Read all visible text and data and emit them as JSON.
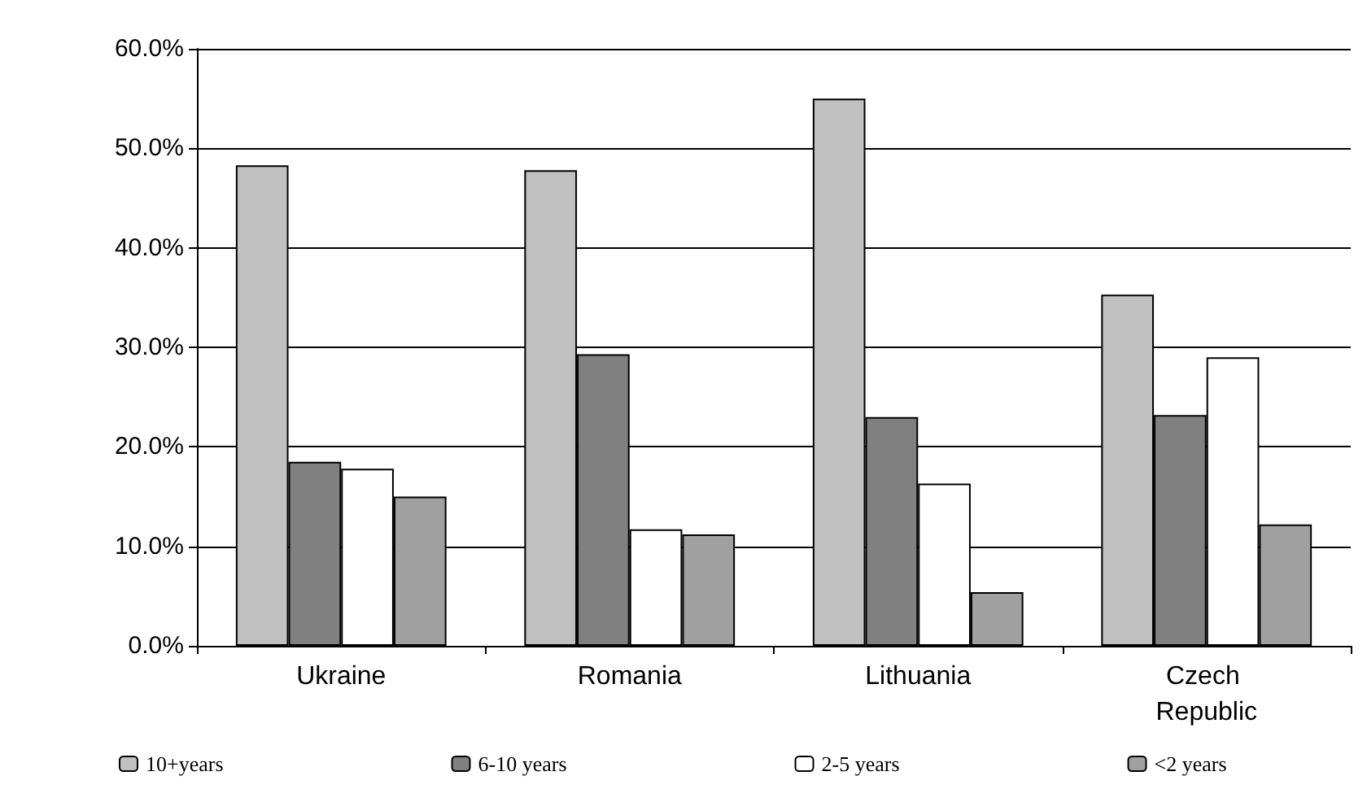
{
  "chart_data": {
    "type": "bar",
    "categories": [
      "Ukraine",
      "Romania",
      "Lithuania",
      "Czech Republic"
    ],
    "series": [
      {
        "name": "10+years",
        "color": "#c0c0c0",
        "values": [
          48.3,
          47.8,
          55.0,
          35.3
        ]
      },
      {
        "name": "6-10 years",
        "color": "#808080",
        "values": [
          18.5,
          29.3,
          23.0,
          23.2
        ]
      },
      {
        "name": "2-5 years",
        "color": "#ffffff",
        "values": [
          17.8,
          11.7,
          16.3,
          29.0
        ]
      },
      {
        "name": "<2 years",
        "color": "#a0a0a0",
        "values": [
          15.0,
          11.2,
          5.4,
          12.2
        ]
      }
    ],
    "ylim": [
      0,
      60
    ],
    "yticks": [
      {
        "value": 0,
        "label": "0.0%"
      },
      {
        "value": 10,
        "label": "10.0%"
      },
      {
        "value": 20,
        "label": "20.0%"
      },
      {
        "value": 30,
        "label": "30.0%"
      },
      {
        "value": 40,
        "label": "40.0%"
      },
      {
        "value": 50,
        "label": "50.0%"
      },
      {
        "value": 60,
        "label": "60.0%"
      }
    ],
    "grid": "y",
    "legend": "bottom"
  }
}
